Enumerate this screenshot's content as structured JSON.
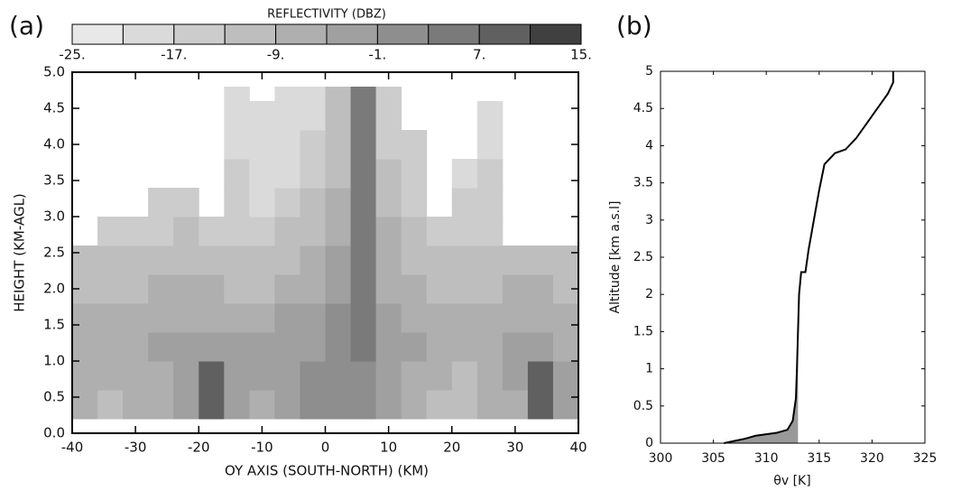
{
  "chart_data": [
    {
      "type": "heatmap",
      "panel_label": "(a)",
      "colorbar_title": "REFLECTIVITY (DBZ)",
      "xlabel": "OY AXIS (SOUTH-NORTH) (KM)",
      "ylabel": "HEIGHT (KM-AGL)",
      "xlim": [
        -40,
        40
      ],
      "ylim": [
        0,
        5
      ],
      "xticks": [
        -40,
        -30,
        -20,
        -10,
        0,
        10,
        20,
        30,
        40
      ],
      "yticks": [
        {
          "value": 0,
          "label": "0.0"
        },
        {
          "value": 0.5,
          "label": "0.5"
        },
        {
          "value": 1,
          "label": "1.0"
        },
        {
          "value": 1.5,
          "label": "1.5"
        },
        {
          "value": 2,
          "label": "2.0"
        },
        {
          "value": 2.5,
          "label": "2.5"
        },
        {
          "value": 3,
          "label": "3.0"
        },
        {
          "value": 3.5,
          "label": "3.5"
        },
        {
          "value": 4,
          "label": "4.0"
        },
        {
          "value": 4.5,
          "label": "4.5"
        },
        {
          "value": 5,
          "label": "5.0"
        }
      ],
      "x_bins": [
        -40,
        -36,
        -32,
        -28,
        -24,
        -20,
        -16,
        -12,
        -8,
        -4,
        0,
        4,
        8,
        12,
        16,
        20,
        24,
        28,
        32,
        36,
        40
      ],
      "y_bins": [
        0.2,
        0.6,
        1.0,
        1.4,
        1.8,
        2.2,
        2.6,
        3.0,
        3.4,
        3.8,
        4.2,
        4.6,
        4.8
      ],
      "values": [
        [
          -7,
          -11,
          -9,
          -7,
          -5,
          9,
          -5,
          -7,
          -3,
          1,
          -1,
          1,
          -5,
          -7,
          -11,
          -13,
          -9,
          -7,
          9,
          -5
        ],
        [
          -7,
          -9,
          -7,
          -7,
          -3,
          7,
          -3,
          -5,
          -3,
          1,
          1,
          1,
          -3,
          -7,
          -9,
          -11,
          -9,
          -5,
          7,
          -5
        ],
        [
          -9,
          -9,
          -7,
          -5,
          -5,
          -3,
          -5,
          -5,
          -5,
          -3,
          -1,
          3,
          -3,
          -5,
          -7,
          -9,
          -7,
          -5,
          -3,
          -7
        ],
        [
          -9,
          -9,
          -9,
          -7,
          -7,
          -7,
          -9,
          -7,
          -5,
          -3,
          -1,
          3,
          -5,
          -7,
          -7,
          -9,
          -9,
          -7,
          -7,
          -9
        ],
        [
          -13,
          -11,
          -11,
          -9,
          -9,
          -9,
          -11,
          -11,
          -9,
          -7,
          -3,
          5,
          -7,
          -9,
          -11,
          -11,
          -11,
          -9,
          -9,
          -11
        ],
        [
          -13,
          -13,
          -13,
          -13,
          -11,
          -11,
          -13,
          -13,
          -11,
          -9,
          -5,
          5,
          -9,
          -11,
          -13,
          -13,
          -13,
          -11,
          -13,
          -13
        ],
        [
          null,
          -15,
          -15,
          -15,
          -13,
          -15,
          -15,
          -15,
          -13,
          -11,
          -7,
          5,
          -9,
          -13,
          -15,
          -15,
          -15,
          null,
          null,
          null
        ],
        [
          null,
          null,
          null,
          -17,
          -17,
          null,
          -17,
          -19,
          -17,
          -13,
          -9,
          5,
          -11,
          -15,
          null,
          -17,
          -17,
          null,
          null,
          null
        ],
        [
          null,
          null,
          null,
          null,
          null,
          null,
          -17,
          -21,
          -19,
          -15,
          -11,
          5,
          -13,
          -17,
          null,
          -19,
          -17,
          null,
          null,
          null
        ],
        [
          null,
          null,
          null,
          null,
          null,
          null,
          -19,
          -21,
          -21,
          -17,
          -11,
          3,
          -15,
          -17,
          null,
          null,
          -19,
          null,
          null,
          null
        ],
        [
          null,
          null,
          null,
          null,
          null,
          null,
          -19,
          -21,
          -21,
          -19,
          -13,
          3,
          -15,
          null,
          null,
          null,
          -19,
          null,
          null,
          null
        ],
        [
          null,
          null,
          null,
          null,
          null,
          null,
          -21,
          null,
          -21,
          -19,
          -13,
          3,
          -17,
          null,
          null,
          null,
          null,
          null,
          null,
          null
        ]
      ],
      "levels": [
        -25,
        -21,
        -17,
        -13,
        -9,
        -5,
        -1,
        3,
        7,
        11,
        15
      ],
      "colors": [
        "#e8e8e8",
        "#dadada",
        "#cccccc",
        "#bebebe",
        "#afafaf",
        "#a0a0a0",
        "#8e8e8e",
        "#7a7a7a",
        "#606060",
        "#404040"
      ],
      "level_ticks": [
        {
          "value": -25,
          "label": "-25."
        },
        {
          "value": -17,
          "label": "-17."
        },
        {
          "value": -9,
          "label": "-9."
        },
        {
          "value": -1,
          "label": "-1."
        },
        {
          "value": 7,
          "label": "7."
        },
        {
          "value": 15,
          "label": "15."
        }
      ]
    },
    {
      "type": "line",
      "panel_label": "(b)",
      "xlabel": "θv [K]",
      "ylabel": "Altitude [km a.s.l]",
      "xlim": [
        300,
        325
      ],
      "ylim": [
        0,
        5
      ],
      "xticks": [
        300,
        305,
        310,
        315,
        320,
        325
      ],
      "yticks": [
        0,
        0.5,
        1,
        1.5,
        2,
        2.5,
        3,
        3.5,
        4,
        4.5,
        5
      ],
      "shade_color": "#999999",
      "shade_xmax": 313,
      "series": [
        {
          "color": "#000000",
          "x": [
            306,
            307,
            308,
            309,
            310,
            311,
            312,
            312.5,
            312.8,
            312.9,
            313,
            313.1,
            313.3,
            313.7,
            314,
            314.5,
            315,
            315.5,
            316.5,
            317.5,
            318.5,
            319.5,
            320.5,
            321.5,
            322,
            322
          ],
          "values": [
            0,
            0.03,
            0.06,
            0.1,
            0.12,
            0.14,
            0.18,
            0.3,
            0.6,
            1,
            1.5,
            2,
            2.3,
            2.3,
            2.6,
            3,
            3.4,
            3.75,
            3.9,
            3.95,
            4.1,
            4.3,
            4.5,
            4.7,
            4.85,
            5
          ]
        }
      ]
    }
  ]
}
